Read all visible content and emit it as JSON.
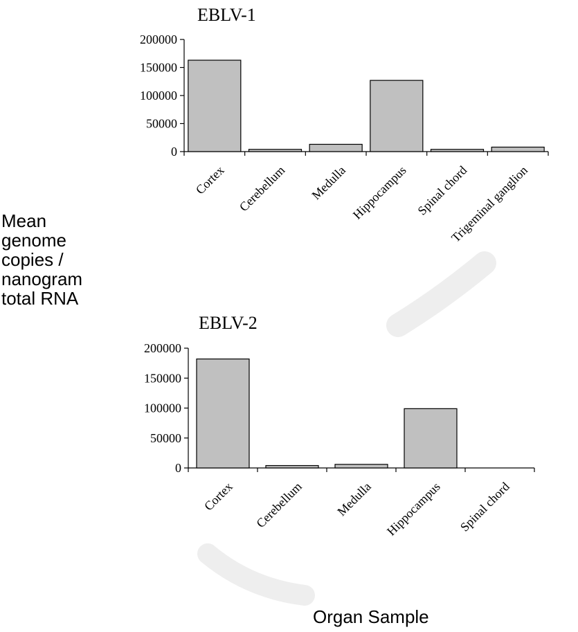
{
  "y_axis_label_lines": [
    "Mean",
    "genome",
    "copies /",
    "nanogram",
    "total RNA"
  ],
  "x_axis_label": "Organ Sample",
  "bar_color": "#c0c0c0",
  "watermark_color": "#eeeeee",
  "chart_data": [
    {
      "type": "bar",
      "title": "EBLV-1",
      "categories": [
        "Cortex",
        "Cerebellum",
        "Medulla",
        "Hippocampus",
        "Spinal chord",
        "Trigeminal ganglion"
      ],
      "values": [
        163000,
        4000,
        13000,
        127000,
        4000,
        8000
      ],
      "ylim": [
        0,
        200000
      ],
      "yticks": [
        0,
        50000,
        100000,
        150000,
        200000
      ],
      "grid": false
    },
    {
      "type": "bar",
      "title": "EBLV-2",
      "categories": [
        "Cortex",
        "Cerebellum",
        "Medulla",
        "Hippocampus",
        "Spinal chord"
      ],
      "values": [
        182000,
        4000,
        6000,
        99000,
        0
      ],
      "ylim": [
        0,
        200000
      ],
      "yticks": [
        0,
        50000,
        100000,
        150000,
        200000
      ],
      "grid": false
    }
  ]
}
